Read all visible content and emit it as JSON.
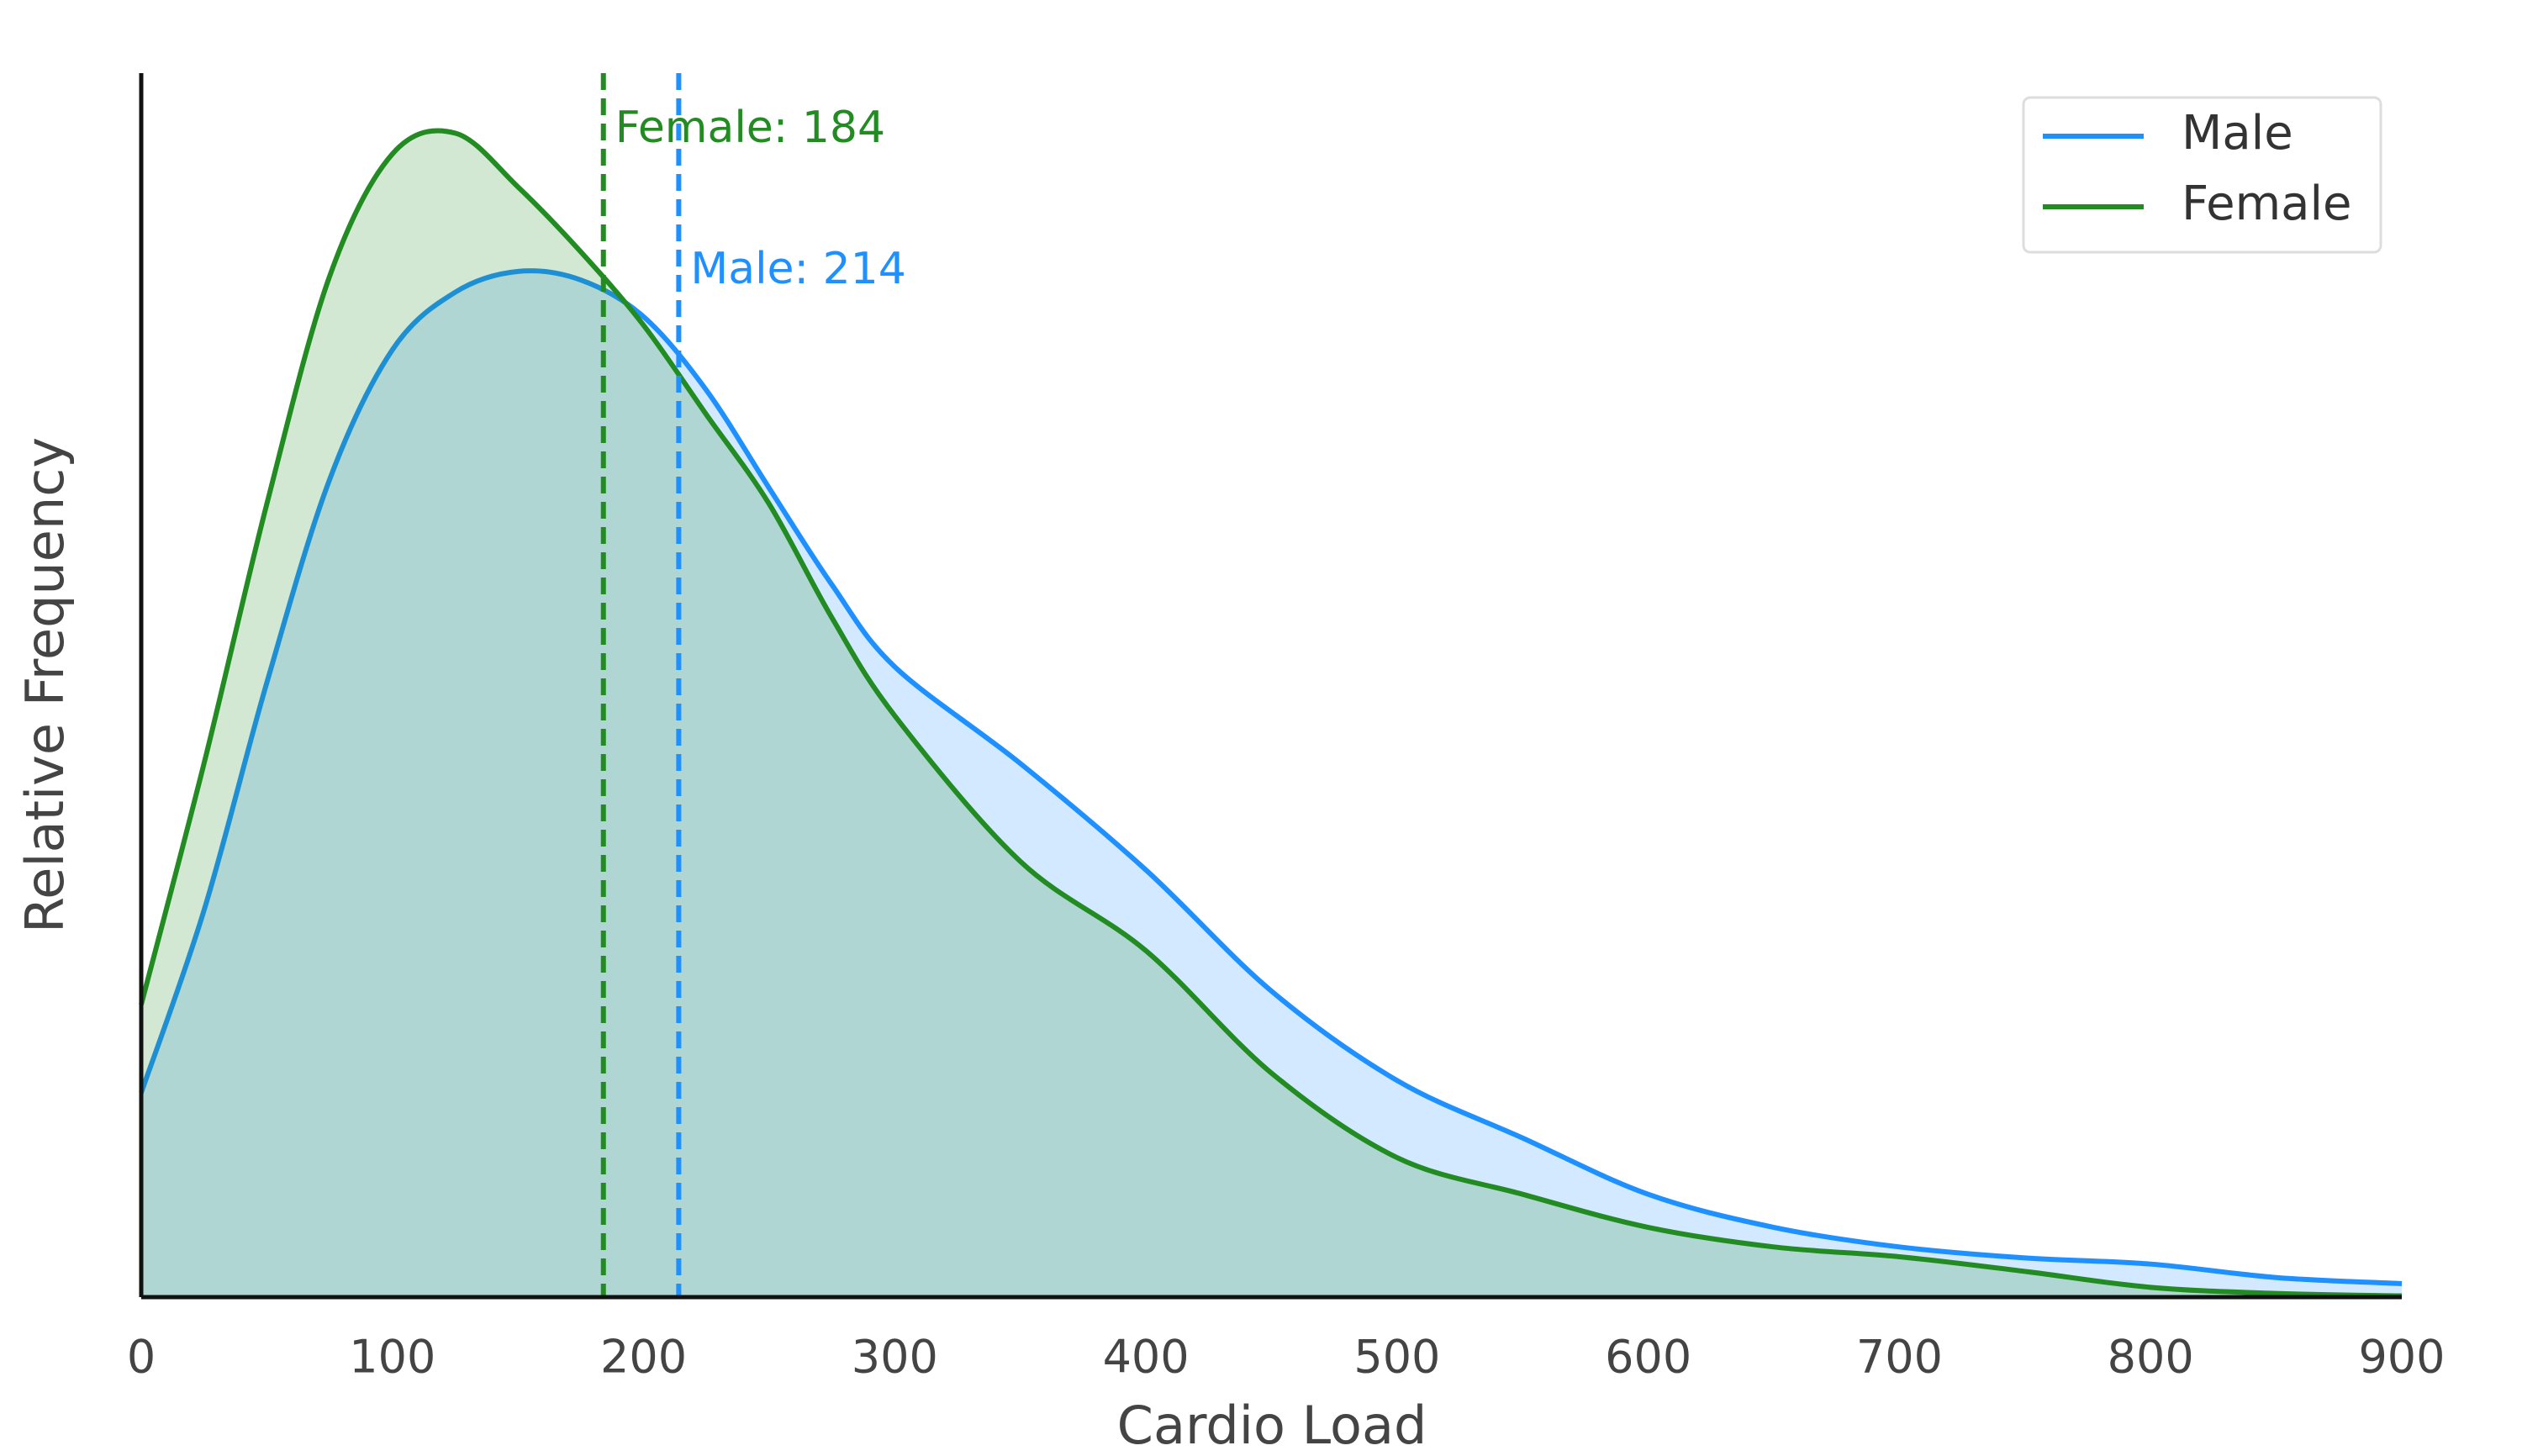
{
  "chart_data": {
    "type": "area",
    "xlabel": "Cardio Load",
    "ylabel": "Relative Frequency",
    "x": [
      0,
      25,
      50,
      75,
      100,
      125,
      150,
      175,
      200,
      225,
      250,
      275,
      300,
      350,
      400,
      450,
      500,
      550,
      600,
      650,
      700,
      750,
      800,
      850,
      900
    ],
    "series": [
      {
        "name": "Male",
        "color": "#1e90ff",
        "mean": 214,
        "mean_label": "Male: 214",
        "values": [
          0.167,
          0.316,
          0.502,
          0.668,
          0.774,
          0.821,
          0.838,
          0.831,
          0.801,
          0.741,
          0.661,
          0.582,
          0.515,
          0.436,
          0.349,
          0.25,
          0.177,
          0.13,
          0.084,
          0.057,
          0.041,
          0.032,
          0.027,
          0.016,
          0.011
        ]
      },
      {
        "name": "Female",
        "color": "#228b22",
        "mean": 184,
        "mean_label": "Female: 184",
        "values": [
          0.239,
          0.436,
          0.648,
          0.834,
          0.934,
          0.951,
          0.907,
          0.854,
          0.794,
          0.721,
          0.648,
          0.555,
          0.475,
          0.356,
          0.283,
          0.183,
          0.114,
          0.084,
          0.057,
          0.041,
          0.033,
          0.021,
          0.008,
          0.003,
          0.001
        ]
      }
    ],
    "xlim": [
      0,
      900
    ],
    "xticks": [
      0,
      100,
      200,
      300,
      400,
      500,
      600,
      700,
      800,
      900
    ],
    "ylim": [
      0,
      1
    ],
    "legend": "upper right",
    "fill_opacity": 0.2
  }
}
